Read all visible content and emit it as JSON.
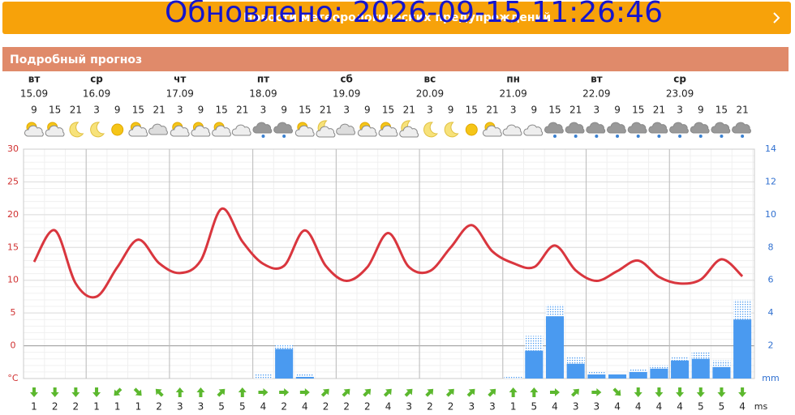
{
  "header": {
    "title": "Обновлено: 2026-09-15 11:26:46",
    "link": "Новости метеорологических предупреждений"
  },
  "section": {
    "title": "Подробный прогноз"
  },
  "chart_data": {
    "type": "line",
    "days": [
      {
        "weekday": "вт",
        "date": "15.09"
      },
      {
        "weekday": "ср",
        "date": "16.09"
      },
      {
        "weekday": "чт",
        "date": "17.09"
      },
      {
        "weekday": "пт",
        "date": "18.09"
      },
      {
        "weekday": "сб",
        "date": "19.09"
      },
      {
        "weekday": "вс",
        "date": "20.09"
      },
      {
        "weekday": "пн",
        "date": "21.09"
      },
      {
        "weekday": "вт",
        "date": "22.09"
      },
      {
        "weekday": "ср",
        "date": "23.09"
      }
    ],
    "categories": [
      9,
      15,
      21,
      3,
      9,
      15,
      21,
      3,
      9,
      15,
      21,
      3,
      9,
      15,
      21,
      3,
      9,
      15,
      21,
      3,
      9,
      15,
      21,
      3,
      9,
      15,
      21,
      3,
      9,
      15,
      21,
      3,
      9,
      15,
      21
    ],
    "series": [
      {
        "color": "#d9363e",
        "values": [
          12.8,
          17.6,
          9.5,
          7.5,
          12,
          16.2,
          12.6,
          11.1,
          13,
          20.9,
          15.9,
          12.5,
          12.2,
          17.6,
          12.2,
          9.9,
          12,
          17.2,
          12,
          11.4,
          15,
          18.4,
          14.4,
          12.6,
          12,
          15.3,
          11.5,
          9.9,
          11.4,
          13,
          10.5,
          9.5,
          10.1,
          13.2,
          10.6
        ]
      },
      {
        "type": "bar",
        "axis": "y2",
        "color": "#4a9af0",
        "values": [
          null,
          null,
          null,
          null,
          null,
          null,
          null,
          null,
          null,
          null,
          null,
          0,
          1.8,
          0.1,
          null,
          null,
          null,
          null,
          null,
          null,
          null,
          null,
          null,
          0,
          1.7,
          3.8,
          0.9,
          0.25,
          0.25,
          0.4,
          0.6,
          1.1,
          1.2,
          0.7,
          3.6
        ]
      },
      {
        "type": "bar",
        "axis": "y2",
        "color": "#4a9af0",
        "values": [
          null,
          null,
          null,
          null,
          null,
          null,
          null,
          null,
          null,
          null,
          null,
          0.3,
          2.1,
          0.25,
          null,
          null,
          null,
          null,
          null,
          null,
          null,
          null,
          null,
          0.1,
          2.6,
          4.5,
          1.3,
          0.4,
          0.25,
          0.55,
          0.8,
          1.3,
          1.6,
          1.1,
          4.8
        ]
      }
    ],
    "ylim": [
      -5,
      30
    ],
    "yticks": [
      {
        "value": -5,
        "label": "°C"
      },
      0,
      5,
      10,
      15,
      20,
      25,
      30
    ],
    "y2lim": [
      0,
      14
    ],
    "y2ticks": [
      {
        "value": 0,
        "label": "mm"
      },
      2,
      4,
      6,
      8,
      10,
      12,
      14
    ],
    "grid": true
  },
  "wind": {
    "unit": "ms",
    "speeds": [
      1,
      2,
      2,
      1,
      1,
      1,
      2,
      3,
      3,
      5,
      5,
      4,
      2,
      4,
      2,
      2,
      2,
      4,
      3,
      2,
      2,
      3,
      3,
      1,
      5,
      4,
      3,
      3,
      4,
      4,
      4,
      4,
      5,
      5,
      4
    ]
  }
}
